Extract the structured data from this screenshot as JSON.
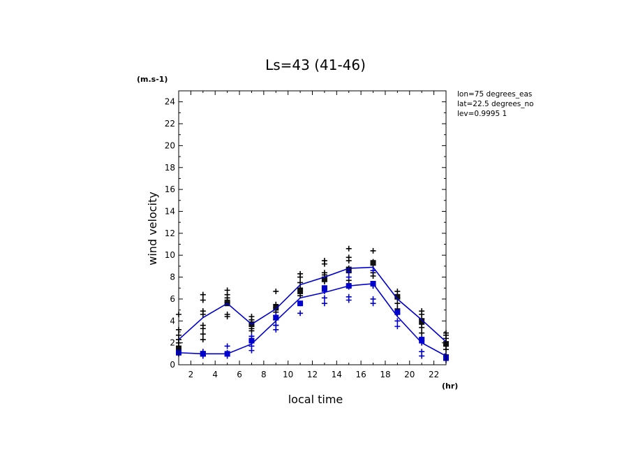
{
  "chart_data": {
    "type": "line",
    "title": "Ls=43 (41-46)",
    "xlabel": "local time",
    "ylabel": "wind velocity",
    "x_unit": "(hr)",
    "y_unit": "(m.s-1)",
    "xlim": [
      1,
      23
    ],
    "ylim": [
      0,
      25
    ],
    "x_ticks": [
      2,
      4,
      6,
      8,
      10,
      12,
      14,
      16,
      18,
      20,
      22
    ],
    "y_ticks": [
      0,
      2,
      4,
      6,
      8,
      10,
      12,
      14,
      16,
      18,
      20,
      22,
      24
    ],
    "info": [
      "lon=75 degrees_eas",
      "lat=22.5 degrees_no",
      "lev=0.9995 1"
    ],
    "x": [
      1,
      3,
      5,
      7,
      9,
      11,
      13,
      15,
      17,
      19,
      21,
      23
    ],
    "series": [
      {
        "color": "#0000cc",
        "values": [
          2.3,
          4.3,
          5.6,
          3.7,
          5.1,
          7.3,
          8.0,
          8.8,
          8.9,
          6.0,
          4.1,
          2.1
        ],
        "squares": [
          1.4,
          1.0,
          5.6,
          3.7,
          5.2,
          6.7,
          7.8,
          8.7,
          9.3,
          6.2,
          4.0,
          1.9
        ],
        "crosses": [
          [
            1.5,
            1.7,
            2.0,
            2.3,
            2.7,
            3.2,
            4.6
          ],
          [
            2.3,
            2.8,
            3.3,
            3.6,
            4.6,
            4.9,
            5.9,
            6.4
          ],
          [
            4.4,
            4.6,
            5.7,
            5.9,
            6.1,
            6.4,
            6.8
          ],
          [
            3.1,
            3.3,
            3.5,
            3.9,
            4.1,
            4.4
          ],
          [
            3.6,
            4.1,
            4.8,
            5.2,
            5.5,
            6.7
          ],
          [
            6.3,
            7.0,
            7.5,
            8.0,
            8.3
          ],
          [
            7.0,
            7.6,
            8.2,
            8.4,
            9.2,
            9.5
          ],
          [
            7.7,
            8.4,
            8.8,
            9.5,
            9.8,
            10.6
          ],
          [
            7.2,
            8.1,
            8.4,
            9.1,
            9.4,
            10.4
          ],
          [
            5.1,
            5.6,
            6.1,
            6.7
          ],
          [
            2.9,
            3.4,
            3.7,
            4.2,
            4.6,
            4.9
          ],
          [
            1.4,
            1.7,
            2.1,
            2.4,
            2.7,
            2.9
          ]
        ]
      },
      {
        "color": "#0000cc",
        "values": [
          1.1,
          1.0,
          1.0,
          1.9,
          4.0,
          6.1,
          6.6,
          7.2,
          7.4,
          4.4,
          2.0,
          0.8
        ],
        "squares": [
          1.1,
          1.0,
          1.0,
          2.2,
          4.3,
          5.6,
          7.0,
          7.2,
          7.4,
          4.8,
          2.3,
          0.7
        ],
        "crosses": [
          [
            1.0,
            1.3
          ],
          [
            0.8,
            1.2
          ],
          [
            0.8,
            1.1,
            1.7
          ],
          [
            1.3,
            1.7,
            2.3,
            2.6
          ],
          [
            3.2,
            3.6,
            4.5
          ],
          [
            4.7,
            5.6
          ],
          [
            5.6,
            6.1,
            6.7
          ],
          [
            5.9,
            6.2,
            7.1,
            8.0,
            8.5
          ],
          [
            5.6,
            6.0,
            7.2,
            8.6
          ],
          [
            3.5,
            4.0,
            4.7
          ],
          [
            0.8,
            1.2,
            2.0,
            2.2,
            2.4
          ],
          [
            0.4,
            0.6,
            0.9
          ]
        ]
      }
    ],
    "grid": false
  }
}
